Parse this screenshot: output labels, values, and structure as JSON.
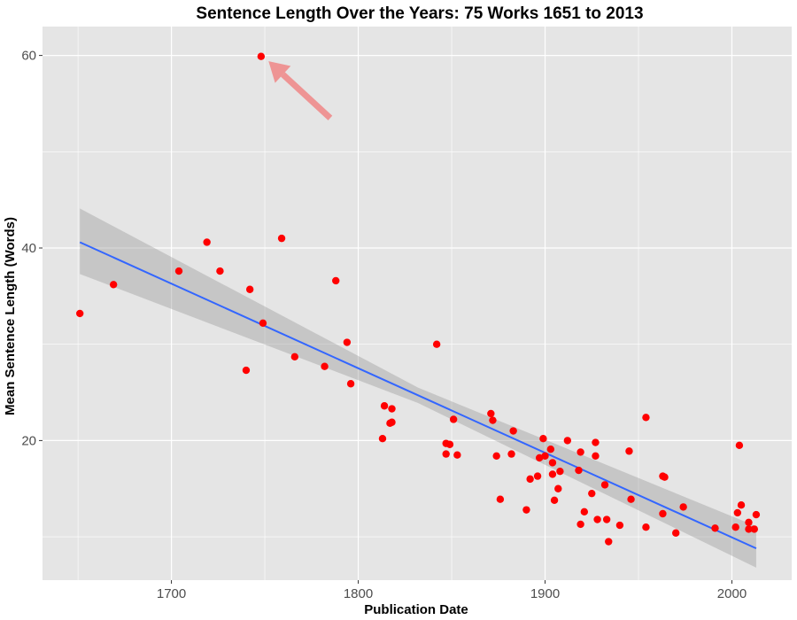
{
  "chart_data": {
    "type": "scatter",
    "title": "Sentence Length Over the Years: 75 Works 1651 to 2013",
    "xlabel": "Publication Date",
    "ylabel": "Mean Sentence Length (Words)",
    "xlim": [
      1631,
      2032
    ],
    "ylim": [
      5.5,
      63
    ],
    "x_ticks": [
      1700,
      1800,
      1900,
      2000
    ],
    "y_ticks": [
      20,
      40,
      60
    ],
    "grid": true,
    "colors": {
      "panel_background": "#e5e5e5",
      "grid_major": "#ffffff",
      "points": "#ff0000",
      "trend_line": "#3366ff",
      "confidence_band": "#999999",
      "arrow": "#f08080"
    },
    "series": [
      {
        "type": "scatter",
        "x": [
          1651,
          1669,
          1704,
          1719,
          1726,
          1740,
          1742,
          1748,
          1749,
          1759,
          1766,
          1782,
          1788,
          1794,
          1796,
          1813,
          1814,
          1817,
          1818,
          1818,
          1842,
          1847,
          1847,
          1849,
          1851,
          1853,
          1871,
          1872,
          1874,
          1876,
          1882,
          1883,
          1890,
          1892,
          1896,
          1897,
          1899,
          1900,
          1903,
          1904,
          1904,
          1905,
          1907,
          1908,
          1912,
          1918,
          1919,
          1919,
          1921,
          1925,
          1927,
          1927,
          1928,
          1932,
          1933,
          1934,
          1940,
          1945,
          1946,
          1954,
          1954,
          1963,
          1963,
          1964,
          1970,
          1974,
          1991,
          2002,
          2003,
          2004,
          2005,
          2009,
          2009,
          2012,
          2013
        ],
        "y": [
          33.2,
          36.2,
          37.6,
          40.6,
          37.6,
          27.3,
          35.7,
          59.9,
          32.2,
          41.0,
          28.7,
          27.7,
          36.6,
          30.2,
          25.9,
          20.2,
          23.6,
          21.8,
          23.3,
          21.9,
          30.0,
          19.7,
          18.6,
          19.6,
          22.2,
          18.5,
          22.8,
          22.1,
          18.4,
          13.9,
          18.6,
          21.0,
          12.8,
          16.0,
          16.3,
          18.2,
          20.2,
          18.4,
          19.1,
          17.7,
          16.5,
          13.8,
          15.0,
          16.8,
          20.0,
          16.9,
          18.8,
          11.3,
          12.6,
          14.5,
          18.4,
          19.8,
          11.8,
          15.4,
          11.8,
          9.5,
          11.2,
          18.9,
          13.9,
          22.4,
          11.0,
          16.3,
          12.4,
          16.2,
          10.4,
          13.1,
          10.9,
          11.0,
          12.5,
          19.5,
          13.3,
          10.8,
          11.5,
          10.8,
          12.3
        ]
      },
      {
        "type": "line",
        "x": [
          1651,
          2013
        ],
        "y": [
          40.6,
          8.8
        ]
      },
      {
        "type": "area",
        "x": [
          1651,
          1832,
          2013
        ],
        "upper": [
          44.1,
          25.5,
          11.1
        ],
        "lower": [
          37.3,
          23.9,
          6.8
        ]
      }
    ],
    "annotation": {
      "type": "arrow",
      "from": [
        1785,
        53.5
      ],
      "to": [
        1752,
        59.4
      ]
    }
  }
}
